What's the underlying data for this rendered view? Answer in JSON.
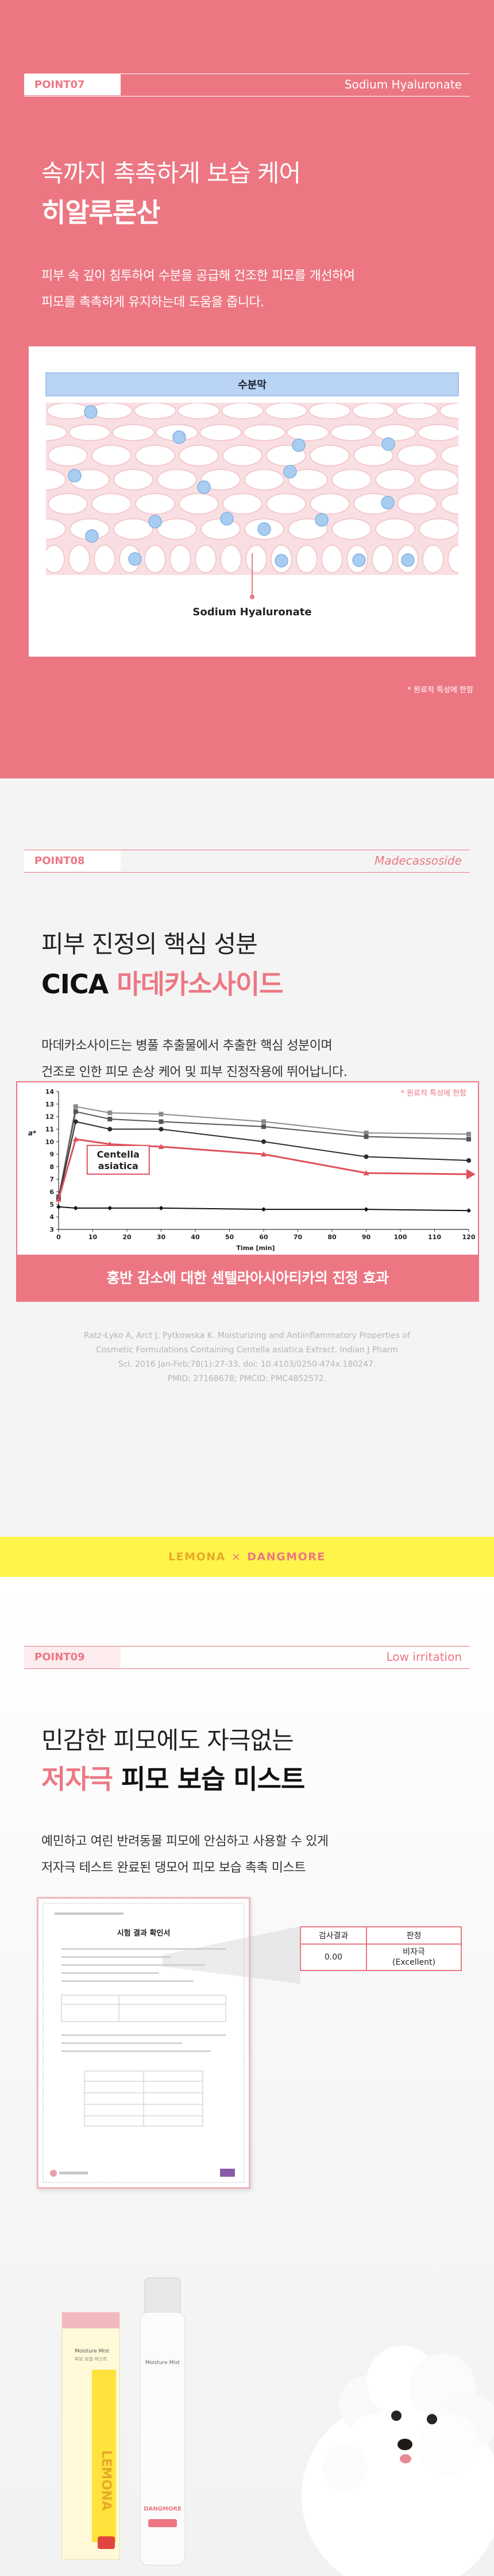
{
  "point07": {
    "label": "POINT07",
    "name": "Sodium Hyaluronate",
    "title_line1": "속까지 촉촉하게 보습 케어",
    "title_line2": "히알루론산",
    "desc_line1": "피부 속 깊이 침투하여 수분을 공급해 건조한 피모를 개선하여",
    "desc_line2": "피모를 촉촉하게 유지하는데 도움을 줍니다.",
    "diagram": {
      "top_label": "수분막",
      "bottom_label": "Sodium Hyaluronate"
    },
    "footnote": "* 원료적 특성에 한함"
  },
  "point08": {
    "label": "POINT08",
    "name": "Madecassoside",
    "title_line1": "피부 진정의 핵심 성분",
    "title_line2_a": "CICA",
    "title_line2_b": "마데카소사이드",
    "desc_line1": "마데카소사이드는 병풀 추출물에서 추출한 핵심 성분이며",
    "desc_line2": "건조로 인한 피모 손상 케어 및 피부 진정작용에 뛰어납니다.",
    "chart_note": "* 원료적 특성에 한함",
    "banner": "홍반 감소에 대한 센텔라아시아티카의 진정 효과",
    "reference_line1": "Ratz-Łyko A, Arct J, Pytkowska K. Moisturizing and Antiinflammatory Properties of",
    "reference_line2": "Cosmetic Formulations Containing Centella asiatica Extract. Indian J Pharm",
    "reference_line3": "Sci. 2016 Jan-Feb;78(1):27-33. doi: 10.4103/0250-474x.180247.",
    "reference_line4": "PMID: 27168678; PMCID: PMC4852572."
  },
  "brand": {
    "left": "LEMONA",
    "separator": "×",
    "right": "DANGMORE"
  },
  "point09": {
    "label": "POINT09",
    "name": "Low irritation",
    "title_line1": "민감한 피모에도 자극없는",
    "title_line2_a": "저자극",
    "title_line2_b": "피모 보습 미스트",
    "desc_line1": "예민하고 여린 반려동물 피모에 안심하고 사용할 수 있게",
    "desc_line2": "저자극 테스트 완료된 댕모어 피모 보습 촉촉 미스트",
    "certificate_title": "시험 결과 확인서",
    "table": {
      "col1_header": "검사결과",
      "col2_header": "판정",
      "result": "0.00",
      "judgement_line1": "비자극",
      "judgement_line2": "(Excellent)"
    },
    "product_left": {
      "brand": "LEMONA",
      "name": "Moisture Mist",
      "sub": "피모 보습 미스트"
    },
    "product_right": {
      "brand": "DANGMORE",
      "name": "Moisture Mist"
    }
  },
  "chart_data": {
    "type": "line",
    "title": "",
    "xlabel": "Time [min]",
    "ylabel": "a*",
    "xlim": [
      0,
      120
    ],
    "ylim": [
      3,
      14
    ],
    "x_ticks": [
      0,
      10,
      20,
      30,
      40,
      50,
      60,
      70,
      80,
      90,
      100,
      110,
      120
    ],
    "y_ticks": [
      3,
      4,
      5,
      6,
      7,
      8,
      9,
      10,
      11,
      12,
      13,
      14
    ],
    "annotation": "Centella asiatica",
    "series": [
      {
        "name": "series-1",
        "x": [
          0,
          5,
          15,
          30,
          60,
          90,
          120
        ],
        "y": [
          5.5,
          12.8,
          12.3,
          12.2,
          11.6,
          10.7,
          10.6
        ]
      },
      {
        "name": "series-2",
        "x": [
          0,
          5,
          15,
          30,
          60,
          90,
          120
        ],
        "y": [
          5.6,
          12.4,
          11.8,
          11.6,
          11.2,
          10.4,
          10.2
        ]
      },
      {
        "name": "series-3",
        "x": [
          0,
          5,
          15,
          30,
          60,
          90,
          120
        ],
        "y": [
          5.4,
          11.6,
          11.0,
          11.0,
          10.0,
          8.8,
          8.5
        ]
      },
      {
        "name": "Centella asiatica",
        "x": [
          0,
          5,
          15,
          30,
          60,
          90,
          120
        ],
        "y": [
          5.4,
          10.2,
          9.8,
          9.6,
          9.0,
          7.5,
          7.4
        ]
      },
      {
        "name": "series-5",
        "x": [
          0,
          5,
          15,
          30,
          60,
          90,
          120
        ],
        "y": [
          4.8,
          4.7,
          4.7,
          4.7,
          4.6,
          4.6,
          4.5
        ]
      }
    ]
  }
}
